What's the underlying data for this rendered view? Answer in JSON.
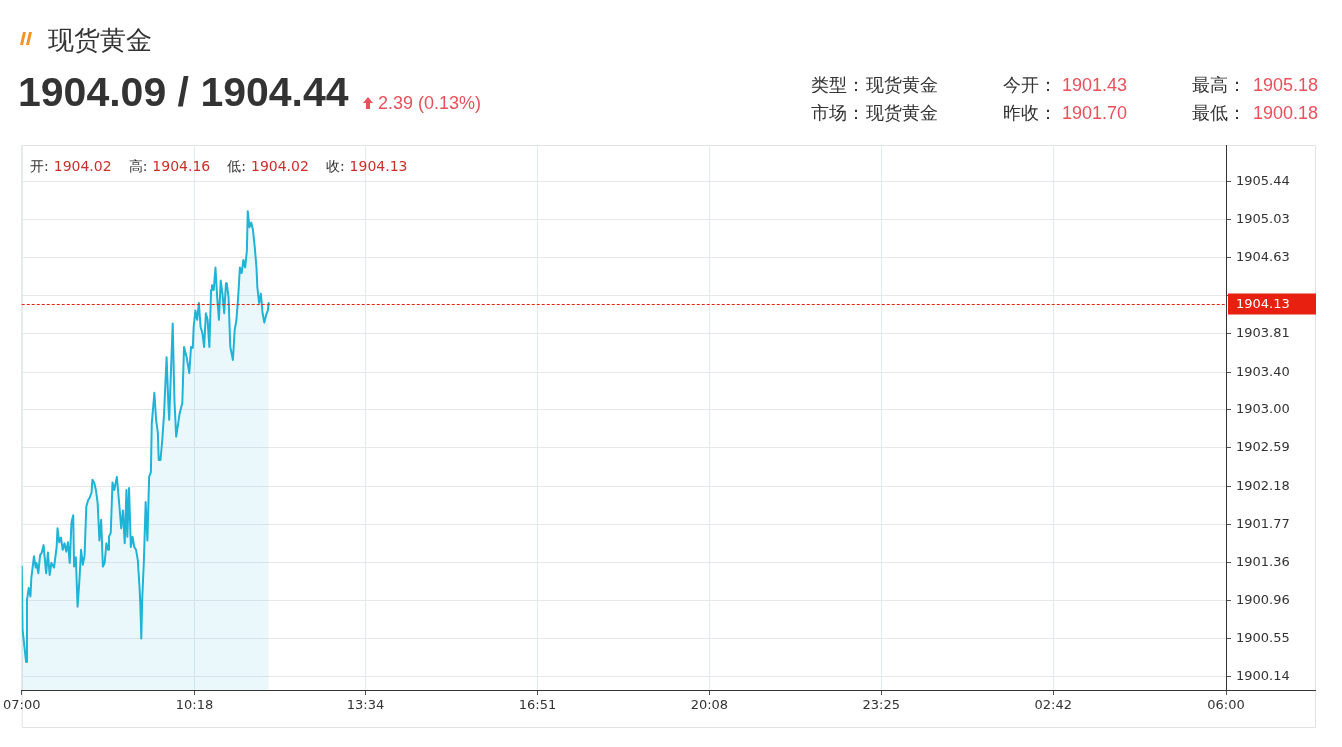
{
  "chart_data": {
    "type": "area",
    "title": "现货黄金",
    "subtitle": "1904.09 / 1904.44",
    "annotations": [
      "2.39 (0.13%)",
      "类型：",
      "现货黄金",
      "今开：",
      "1901.43",
      "最高：",
      "1905.18",
      "市场：",
      "现货黄金",
      "昨收：",
      "1901.70",
      "最低：",
      "1900.18",
      "开:",
      "1904.02",
      "高:",
      "1904.16",
      "低:",
      "1904.02",
      "收:",
      "1904.13"
    ],
    "x": [
      "2000-01-01T07:00",
      "2000-01-01T07:01",
      "2000-01-01T07:05",
      "2000-01-01T07:06",
      "2000-01-01T07:08",
      "2000-01-01T07:10",
      "2000-01-01T07:11",
      "2000-01-01T07:14",
      "2000-01-01T07:16",
      "2000-01-01T07:17",
      "2000-01-01T07:19",
      "2000-01-01T07:21",
      "2000-01-01T07:23",
      "2000-01-01T07:25",
      "2000-01-01T07:28",
      "2000-01-01T07:30",
      "2000-01-01T07:32",
      "2000-01-01T07:34",
      "2000-01-01T07:37",
      "2000-01-01T07:40",
      "2000-01-01T07:41",
      "2000-01-01T07:43",
      "2000-01-01T07:45",
      "2000-01-01T07:47",
      "2000-01-01T07:49",
      "2000-01-01T07:51",
      "2000-01-01T07:53",
      "2000-01-01T07:55",
      "2000-01-01T07:57",
      "2000-01-01T07:59",
      "2000-01-01T08:00",
      "2000-01-01T08:02",
      "2000-01-01T08:04",
      "2000-01-01T08:06",
      "2000-01-01T08:08",
      "2000-01-01T08:10",
      "2000-01-01T08:12",
      "2000-01-01T08:14",
      "2000-01-01T08:16",
      "2000-01-01T08:18",
      "2000-01-01T08:20",
      "2000-01-01T08:21",
      "2000-01-01T08:23",
      "2000-01-01T08:25",
      "2000-01-01T08:27",
      "2000-01-01T08:29",
      "2000-01-01T08:31",
      "2000-01-01T08:33",
      "2000-01-01T08:35",
      "2000-01-01T08:37",
      "2000-01-01T08:39",
      "2000-01-01T08:40",
      "2000-01-01T08:42",
      "2000-01-01T08:44",
      "2000-01-01T08:46",
      "2000-01-01T08:49",
      "2000-01-01T08:52",
      "2000-01-01T08:54",
      "2000-01-01T08:56",
      "2000-01-01T08:58",
      "2000-01-01T09:00",
      "2000-01-01T09:01",
      "2000-01-01T09:03",
      "2000-01-01T09:05",
      "2000-01-01T09:07",
      "2000-01-01T09:09",
      "2000-01-01T09:11",
      "2000-01-01T09:13",
      "2000-01-01T09:15",
      "2000-01-01T09:16",
      "2000-01-01T09:17",
      "2000-01-01T09:18",
      "2000-01-01T09:20",
      "2000-01-01T09:22",
      "2000-01-01T09:24",
      "2000-01-01T09:26",
      "2000-01-01T09:28",
      "2000-01-01T09:29",
      "2000-01-01T09:32",
      "2000-01-01T09:34",
      "2000-01-01T09:36",
      "2000-01-01T09:37",
      "2000-01-01T09:39",
      "2000-01-01T09:41",
      "2000-01-01T09:43",
      "2000-01-01T09:46",
      "2000-01-01T09:48",
      "2000-01-01T09:49",
      "2000-01-01T09:53",
      "2000-01-01T09:55",
      "2000-01-01T09:57",
      "2000-01-01T10:01",
      "2000-01-01T10:04",
      "2000-01-01T10:06",
      "2000-01-01T10:09",
      "2000-01-01T10:12",
      "2000-01-01T10:14",
      "2000-01-01T10:16",
      "2000-01-01T10:17",
      "2000-01-01T10:19",
      "2000-01-01T10:21",
      "2000-01-01T10:23",
      "2000-01-01T10:25",
      "2000-01-01T10:27",
      "2000-01-01T10:29",
      "2000-01-01T10:31",
      "2000-01-01T10:33",
      "2000-01-01T10:35",
      "2000-01-01T10:37",
      "2000-01-01T10:38",
      "2000-01-01T10:40",
      "2000-01-01T10:42",
      "2000-01-01T10:44",
      "2000-01-01T10:46",
      "2000-01-01T10:48",
      "2000-01-01T10:50",
      "2000-01-01T10:52",
      "2000-01-01T10:54",
      "2000-01-01T10:55",
      "2000-01-01T10:57",
      "2000-01-01T10:59",
      "2000-01-01T11:02",
      "2000-01-01T11:04",
      "2000-01-01T11:06",
      "2000-01-01T11:08",
      "2000-01-01T11:10",
      "2000-01-01T11:12",
      "2000-01-01T11:14",
      "2000-01-01T11:16",
      "2000-01-01T11:18",
      "2000-01-01T11:19",
      "2000-01-01T11:21",
      "2000-01-01T11:23",
      "2000-01-01T11:25",
      "2000-01-01T11:27",
      "2000-01-01T11:29",
      "2000-01-01T11:30",
      "2000-01-01T11:32",
      "2000-01-01T11:34",
      "2000-01-01T11:36",
      "2000-01-01T11:38",
      "2000-01-01T11:40",
      "2000-01-01T11:42",
      "2000-01-01T11:43"
    ],
    "series": [
      {
        "color": "#1fb3d5",
        "values": [
          1901.32,
          1900.64,
          1900.3,
          1900.96,
          1901.09,
          1901.0,
          1901.2,
          1901.43,
          1901.31,
          1901.36,
          1901.25,
          1901.44,
          1901.47,
          1901.55,
          1901.25,
          1901.47,
          1901.23,
          1901.36,
          1901.31,
          1901.53,
          1901.73,
          1901.58,
          1901.63,
          1901.5,
          1901.57,
          1901.48,
          1901.58,
          1901.36,
          1901.79,
          1901.87,
          1901.32,
          1901.42,
          1900.89,
          1901.16,
          1901.5,
          1901.34,
          1901.44,
          1901.96,
          1902.03,
          1902.06,
          1902.11,
          1902.25,
          1902.22,
          1902.14,
          1902.0,
          1901.6,
          1901.82,
          1901.32,
          1901.36,
          1901.57,
          1901.5,
          1901.64,
          1901.68,
          1902.22,
          1902.14,
          1902.28,
          1901.96,
          1901.73,
          1901.92,
          1901.57,
          1902.14,
          1901.64,
          1902.16,
          1901.53,
          1901.64,
          1901.53,
          1901.5,
          1901.39,
          1901.1,
          1900.89,
          1900.55,
          1900.96,
          1901.39,
          1902.01,
          1901.6,
          1902.28,
          1902.33,
          1902.85,
          1903.18,
          1902.89,
          1902.75,
          1902.46,
          1902.46,
          1902.67,
          1902.94,
          1903.56,
          1903.07,
          1902.89,
          1903.92,
          1903.1,
          1902.71,
          1902.96,
          1903.07,
          1903.67,
          1903.56,
          1903.39,
          1903.67,
          1903.66,
          1903.88,
          1904.06,
          1903.96,
          1904.14,
          1903.88,
          1903.82,
          1903.67,
          1904.03,
          1903.96,
          1903.67,
          1904.28,
          1904.33,
          1904.28,
          1904.52,
          1904.2,
          1903.96,
          1904.38,
          1904.24,
          1904.03,
          1904.35,
          1904.35,
          1904.2,
          1903.67,
          1903.53,
          1903.85,
          1903.96,
          1904.2,
          1904.52,
          1904.46,
          1904.6,
          1904.52,
          1904.7,
          1905.12,
          1904.95,
          1905.0,
          1904.92,
          1904.74,
          1904.52,
          1904.31,
          1904.14,
          1904.24,
          1904.03,
          1903.93,
          1904.01,
          1904.06,
          1904.14
        ]
      }
    ],
    "xlim": [
      "2000-01-01T07:00",
      "2000-01-02T06:00"
    ],
    "xticks": [
      {
        "value": "2000-01-01T07:00",
        "label": "07:00"
      },
      {
        "value": "2000-01-01T10:18",
        "label": "10:18"
      },
      {
        "value": "2000-01-01T13:34",
        "label": "13:34"
      },
      {
        "value": "2000-01-01T16:51",
        "label": "16:51"
      },
      {
        "value": "2000-01-01T20:08",
        "label": "20:08"
      },
      {
        "value": "2000-01-01T23:25",
        "label": "23:25"
      },
      {
        "value": "2000-01-02T02:42",
        "label": "02:42"
      },
      {
        "value": "2000-01-02T06:00",
        "label": "06:00"
      }
    ],
    "ylim": [
      1900.0,
      1905.83
    ],
    "yticks": [
      1900.14,
      1900.55,
      1900.96,
      1901.36,
      1901.77,
      1902.18,
      1902.59,
      {
        "value": 1903,
        "label": "1903.00"
      },
      {
        "value": 1903.4,
        "label": "1903.40"
      },
      1903.81,
      {
        "value": 1904.22,
        "label": null
      },
      1904.63,
      1905.03,
      1905.44
    ],
    "ref_lines": [
      {
        "axis": "y",
        "value": 1904.13,
        "label": "1904.13",
        "color": "#e8200f",
        "line_style": "dashed"
      }
    ],
    "grid": true,
    "marker": "none"
  }
}
